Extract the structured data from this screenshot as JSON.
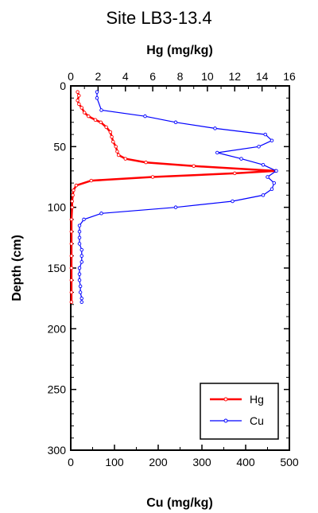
{
  "chart_data": {
    "type": "line",
    "title": "Site LB3-13.4",
    "ylabel": "Depth (cm)",
    "ylim": [
      0,
      300
    ],
    "y_ticks": [
      "0",
      "50",
      "100",
      "150",
      "200",
      "250",
      "300"
    ],
    "y_inverted": true,
    "x_top": {
      "label": "Hg (mg/kg)",
      "lim": [
        0,
        16
      ],
      "ticks": [
        "0",
        "2",
        "4",
        "6",
        "8",
        "10",
        "12",
        "14",
        "16"
      ]
    },
    "x_bottom": {
      "label": "Cu (mg/kg)",
      "lim": [
        0,
        500
      ],
      "ticks": [
        "0",
        "100",
        "200",
        "300",
        "400",
        "500"
      ]
    },
    "legend": {
      "position": "bottom-right"
    },
    "series": [
      {
        "name": "Hg",
        "axis": "top",
        "color": "#ff0000",
        "points": [
          [
            0.5,
            5
          ],
          [
            0.6,
            8
          ],
          [
            0.5,
            12
          ],
          [
            0.6,
            15
          ],
          [
            0.8,
            18
          ],
          [
            1.0,
            22
          ],
          [
            1.3,
            25
          ],
          [
            1.8,
            28
          ],
          [
            2.2,
            30
          ],
          [
            2.6,
            34
          ],
          [
            2.9,
            38
          ],
          [
            3.0,
            42
          ],
          [
            3.1,
            46
          ],
          [
            3.3,
            50
          ],
          [
            3.4,
            54
          ],
          [
            3.5,
            57
          ],
          [
            4.0,
            60
          ],
          [
            5.5,
            63
          ],
          [
            9.0,
            66
          ],
          [
            15.0,
            70
          ],
          [
            12.0,
            72
          ],
          [
            6.0,
            75
          ],
          [
            1.5,
            78
          ],
          [
            0.4,
            82
          ],
          [
            0.2,
            86
          ],
          [
            0.15,
            90
          ],
          [
            0.1,
            95
          ],
          [
            0.1,
            100
          ],
          [
            0.05,
            110
          ],
          [
            0.05,
            120
          ],
          [
            0.05,
            130
          ],
          [
            0.05,
            140
          ],
          [
            0.05,
            150
          ],
          [
            0.05,
            160
          ],
          [
            0.05,
            170
          ],
          [
            0.05,
            178
          ]
        ]
      },
      {
        "name": "Cu",
        "axis": "bottom",
        "color": "#0000ff",
        "points": [
          [
            60,
            5
          ],
          [
            60,
            10
          ],
          [
            70,
            20
          ],
          [
            170,
            25
          ],
          [
            240,
            30
          ],
          [
            330,
            35
          ],
          [
            445,
            40
          ],
          [
            460,
            45
          ],
          [
            430,
            50
          ],
          [
            335,
            55
          ],
          [
            390,
            60
          ],
          [
            440,
            65
          ],
          [
            470,
            70
          ],
          [
            450,
            75
          ],
          [
            465,
            80
          ],
          [
            460,
            85
          ],
          [
            440,
            90
          ],
          [
            370,
            95
          ],
          [
            240,
            100
          ],
          [
            70,
            105
          ],
          [
            30,
            110
          ],
          [
            20,
            115
          ],
          [
            20,
            120
          ],
          [
            20,
            125
          ],
          [
            20,
            130
          ],
          [
            25,
            135
          ],
          [
            25,
            140
          ],
          [
            25,
            145
          ],
          [
            20,
            150
          ],
          [
            20,
            155
          ],
          [
            20,
            160
          ],
          [
            22,
            165
          ],
          [
            22,
            170
          ],
          [
            25,
            175
          ],
          [
            25,
            178
          ]
        ]
      }
    ]
  }
}
